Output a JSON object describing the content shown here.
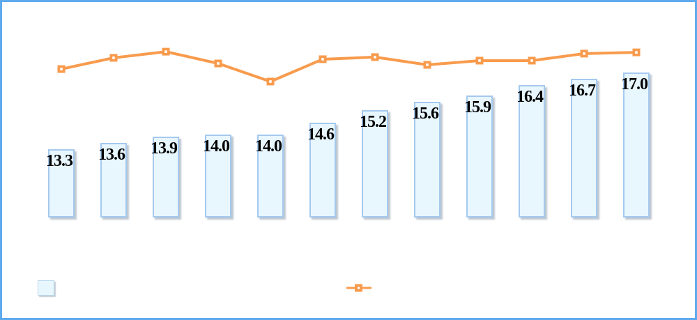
{
  "chart_data": {
    "type": "combo_bar_line",
    "title_visible": false,
    "axis_tick_labels_visible": false,
    "gridlines": false,
    "categories_visible": false,
    "n_points": 12,
    "ylim": [
      10,
      18.5
    ],
    "bar_series": {
      "name": "bar-series",
      "values": [
        13.3,
        13.6,
        13.9,
        14.0,
        14.0,
        14.6,
        15.2,
        15.6,
        15.9,
        16.4,
        16.7,
        17.0
      ],
      "data_labels": [
        "13.3",
        "13.6",
        "13.9",
        "14.0",
        "14.0",
        "14.6",
        "15.2",
        "15.6",
        "15.9",
        "16.4",
        "16.7",
        "17.0"
      ],
      "data_labels_visible": true
    },
    "line_series": {
      "name": "line-series",
      "values_labeled": false,
      "relative_heights_0to1": [
        0.845,
        0.909,
        0.944,
        0.877,
        0.774,
        0.901,
        0.913,
        0.869,
        0.893,
        0.893,
        0.933,
        0.94
      ]
    },
    "legend": {
      "position": "bottom",
      "labels_visible": false,
      "entries": [
        "bar-swatch",
        "line-swatch"
      ]
    }
  },
  "colors": {
    "background": "#FFFFFF",
    "frame_border": "#5FA9EE",
    "bar_fill": "#E8F6FE",
    "bar_border": "#A5C9ED",
    "bar_label_text": "#000000",
    "line": "#F89B4D",
    "marker_fill": "#F89B4D",
    "marker_center": "#FFFFFF"
  }
}
